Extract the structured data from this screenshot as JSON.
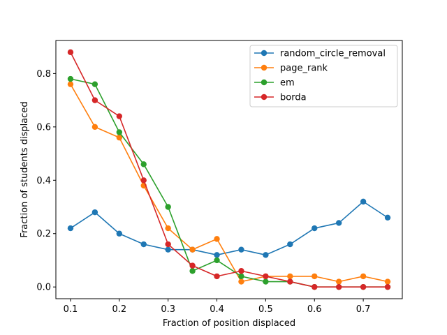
{
  "chart_data": {
    "type": "line",
    "title": "",
    "xlabel": "Fraction of position displaced",
    "ylabel": "Fraction of students displaced",
    "xlim": [
      0.07,
      0.78
    ],
    "ylim": [
      -0.044,
      0.924
    ],
    "xticks": [
      0.1,
      0.2,
      0.3,
      0.4,
      0.5,
      0.6,
      0.7
    ],
    "xtick_labels": [
      "0.1",
      "0.2",
      "0.3",
      "0.4",
      "0.5",
      "0.6",
      "0.7"
    ],
    "yticks": [
      0.0,
      0.2,
      0.4,
      0.6,
      0.8
    ],
    "ytick_labels": [
      "0.0",
      "0.2",
      "0.4",
      "0.6",
      "0.8"
    ],
    "grid": false,
    "legend_position": "top-right",
    "x": [
      0.1,
      0.15,
      0.2,
      0.25,
      0.3,
      0.35,
      0.4,
      0.45,
      0.5,
      0.55,
      0.6,
      0.65,
      0.7,
      0.75
    ],
    "series": [
      {
        "name": "random_circle_removal",
        "color": "#1f77b4",
        "values": [
          0.22,
          0.28,
          0.2,
          0.16,
          0.14,
          0.14,
          0.12,
          0.14,
          0.12,
          0.16,
          0.22,
          0.24,
          0.32,
          0.26
        ]
      },
      {
        "name": "page_rank",
        "color": "#ff7f0e",
        "values": [
          0.76,
          0.6,
          0.56,
          0.38,
          0.22,
          0.14,
          0.18,
          0.02,
          0.04,
          0.04,
          0.04,
          0.02,
          0.04,
          0.02
        ]
      },
      {
        "name": "em",
        "color": "#2ca02c",
        "values": [
          0.78,
          0.76,
          0.58,
          0.46,
          0.3,
          0.06,
          0.1,
          0.04,
          0.02,
          0.02,
          0.0,
          0.0,
          0.0,
          0.0
        ]
      },
      {
        "name": "borda",
        "color": "#d62728",
        "values": [
          0.88,
          0.7,
          0.64,
          0.4,
          0.16,
          0.08,
          0.04,
          0.06,
          0.04,
          0.02,
          0.0,
          0.0,
          0.0,
          0.0
        ]
      }
    ]
  }
}
